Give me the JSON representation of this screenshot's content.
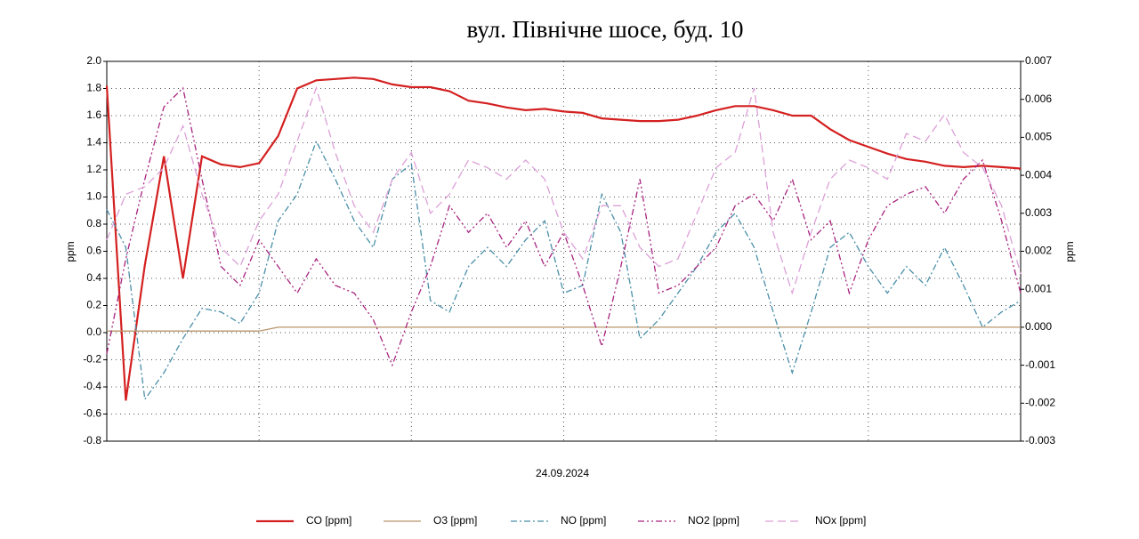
{
  "chart_data": {
    "type": "line",
    "title": "вул. Північне шосе, буд. 10",
    "x_label": "24.09.2024",
    "y_label": "ppm",
    "y2_label": "ppm",
    "ylim": [
      -0.8,
      2.0
    ],
    "yticks": [
      {
        "value": 2.0,
        "label": "2.0"
      },
      1.8,
      1.6,
      1.4,
      1.2,
      {
        "value": 1.0,
        "label": "1.0"
      },
      0.8,
      0.6,
      0.4,
      0.2,
      {
        "value": 0.0,
        "label": "0.0"
      },
      -0.2,
      -0.4,
      -0.6,
      -0.8
    ],
    "y2lim": [
      -0.003,
      0.007
    ],
    "y2ticks": [
      0.007,
      0.006,
      0.005,
      0.004,
      0.003,
      0.002,
      0.001,
      {
        "value": 0,
        "label": "0.000"
      },
      -0.001,
      -0.002,
      -0.003
    ],
    "grid": true,
    "legend": "bottom",
    "series": [
      {
        "name": "CO [ppm]",
        "color": "#d42020",
        "line_style": "solid",
        "values": [
          1.82,
          -0.5,
          0.5,
          1.3,
          0.4,
          1.3,
          1.24,
          1.22,
          1.25,
          1.45,
          1.8,
          1.86,
          1.87,
          1.88,
          1.87,
          1.83,
          1.81,
          1.81,
          1.78,
          1.71,
          1.69,
          1.66,
          1.64,
          1.65,
          1.63,
          1.62,
          1.58,
          1.57,
          1.56,
          1.56,
          1.57,
          1.6,
          1.64,
          1.67,
          1.67,
          1.64,
          1.6,
          1.6,
          1.5,
          1.42,
          1.37,
          1.32,
          1.28,
          1.26,
          1.23,
          1.22,
          1.23,
          1.22,
          1.21
        ]
      },
      {
        "name": "O3 [ppm]",
        "color": "#b8956a",
        "line_style": "solid",
        "axis": "y2",
        "values": [
          -0.0001,
          -0.0001,
          -0.0001,
          -0.0001,
          -0.0001,
          -0.0001,
          -0.0001,
          -0.0001,
          -0.0001,
          0,
          0,
          0,
          0,
          0,
          0,
          0,
          0,
          0,
          0,
          0,
          0,
          0,
          0,
          0,
          0,
          0,
          0,
          0,
          0,
          0,
          0,
          0,
          0,
          0,
          0,
          0,
          0,
          0,
          0,
          0,
          0,
          0,
          0,
          0,
          0,
          0,
          0,
          0,
          0
        ]
      },
      {
        "name": "NO [ppm]",
        "color": "#4a8fa8",
        "line_style": "dash-dot",
        "axis": "y2",
        "values": [
          0.0031,
          0.0021,
          -0.0019,
          -0.0012,
          -0.0003,
          0.0005,
          0.0004,
          0.0001,
          0.0009,
          0.0028,
          0.0035,
          0.0049,
          0.0039,
          0.0028,
          0.0021,
          0.0039,
          0.0043,
          0.0007,
          0.0004,
          0.0016,
          0.0021,
          0.0016,
          0.0023,
          0.0028,
          0.0009,
          0.0011,
          0.0035,
          0.0025,
          -0.0003,
          0.0002,
          0.0009,
          0.0016,
          0.0025,
          0.003,
          0.0021,
          0.0004,
          -0.0012,
          0.0004,
          0.0021,
          0.0025,
          0.0016,
          0.0009,
          0.0016,
          0.0011,
          0.0021,
          0.0011,
          0,
          0.0004,
          0.0007
        ]
      },
      {
        "name": "NO2 [ppm]",
        "color": "#a8237f",
        "line_style": "dash-dot-dot",
        "axis": "y2",
        "values": [
          -0.0007,
          0.0018,
          0.0039,
          0.0058,
          0.0063,
          0.0039,
          0.0016,
          0.0011,
          0.0023,
          0.0016,
          0.0009,
          0.0018,
          0.0011,
          0.0009,
          0.0002,
          -0.001,
          0.0004,
          0.0016,
          0.0032,
          0.0025,
          0.003,
          0.0021,
          0.0028,
          0.0016,
          0.0025,
          0.0011,
          -0.0005,
          0.0016,
          0.0039,
          0.0009,
          0.0011,
          0.0016,
          0.0021,
          0.0032,
          0.0035,
          0.0028,
          0.0039,
          0.0023,
          0.0028,
          0.0009,
          0.0023,
          0.0032,
          0.0035,
          0.0037,
          0.003,
          0.0039,
          0.0044,
          0.0028,
          0.0009
        ]
      },
      {
        "name": "NOx [ppm]",
        "color": "#dca0d8",
        "line_style": "dashed",
        "axis": "y2",
        "values": [
          0.0023,
          0.0035,
          0.0037,
          0.0042,
          0.0053,
          0.0035,
          0.0021,
          0.0016,
          0.0028,
          0.0035,
          0.0049,
          0.0063,
          0.0046,
          0.0032,
          0.0025,
          0.0039,
          0.0046,
          0.003,
          0.0035,
          0.0044,
          0.0042,
          0.0039,
          0.0044,
          0.0039,
          0.0025,
          0.0018,
          0.0032,
          0.0032,
          0.0021,
          0.0016,
          0.0018,
          0.003,
          0.0042,
          0.0046,
          0.0063,
          0.0025,
          0.0009,
          0.0025,
          0.0039,
          0.0044,
          0.0042,
          0.0039,
          0.0051,
          0.0049,
          0.0056,
          0.0046,
          0.0042,
          0.0032,
          0.0014
        ]
      }
    ]
  }
}
